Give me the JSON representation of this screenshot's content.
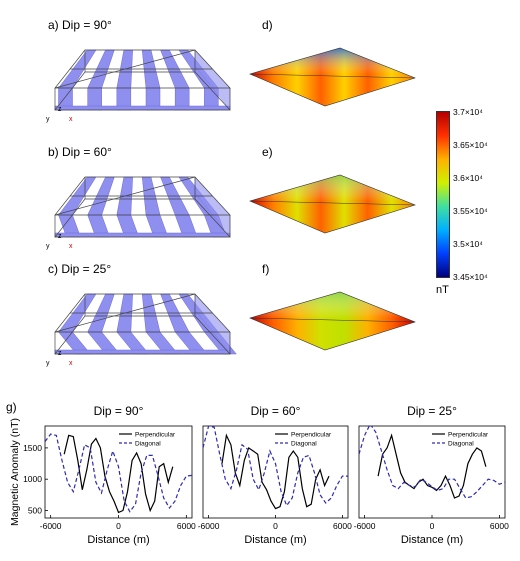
{
  "panels": {
    "a": {
      "label": "a) Dip = 90°"
    },
    "b": {
      "label": "b) Dip = 60°"
    },
    "c": {
      "label": "c) Dip = 25°"
    },
    "d": {
      "label": "d)"
    },
    "e": {
      "label": "e)"
    },
    "f": {
      "label": "f)"
    },
    "g": {
      "label": "g)"
    }
  },
  "axes_icon": {
    "y": "y",
    "z": "z",
    "x": "x"
  },
  "colorbar": {
    "ticks": [
      "3.7×10⁴",
      "3.65×10⁴",
      "3.6×10⁴",
      "3.55×10⁴",
      "3.5×10⁴",
      "3.45×10⁴"
    ],
    "unit": "nT",
    "colors": [
      "#b40000",
      "#ff3000",
      "#ffb000",
      "#d0f000",
      "#40e0a0",
      "#00b0ff",
      "#0040ff",
      "#000080"
    ]
  },
  "colors": {
    "block": "#8f8ff0",
    "block_edge": "#6a6ad8",
    "perpendicular": "#000000",
    "diagonal": "#2b2bb8"
  },
  "chart_data": [
    {
      "type": "line",
      "title": "Dip = 90°",
      "xlabel": "Distance (m)",
      "ylabel": "Magnetic Anomaly (nT)",
      "xlim": [
        -6500,
        6500
      ],
      "ylim": [
        380,
        1850
      ],
      "xticks": [
        "-6000",
        "0",
        "6000"
      ],
      "yticks": [
        "500",
        "1000",
        "1500"
      ],
      "legend": "top-right",
      "series": [
        {
          "name": "Perpendicular",
          "style": "solid",
          "x": [
            -4800,
            -4400,
            -4000,
            -3600,
            -3200,
            -2800,
            -2400,
            -2000,
            -1600,
            -1200,
            -800,
            -400,
            0,
            400,
            800,
            1200,
            1600,
            2000,
            2400,
            2800,
            3200,
            3600,
            4000,
            4400,
            4800
          ],
          "y": [
            1400,
            1700,
            1680,
            1300,
            830,
            1150,
            1560,
            1650,
            1500,
            1050,
            800,
            650,
            470,
            500,
            800,
            1300,
            1420,
            1250,
            760,
            500,
            650,
            1200,
            1250,
            950,
            1200
          ]
        },
        {
          "name": "Diagonal",
          "style": "dashed",
          "x": [
            -6500,
            -6000,
            -5500,
            -5000,
            -4500,
            -4000,
            -3500,
            -3000,
            -2500,
            -2000,
            -1500,
            -1000,
            -500,
            0,
            500,
            1000,
            1500,
            2000,
            2500,
            3000,
            3500,
            4000,
            4500,
            5000,
            5500,
            6000,
            6500
          ],
          "y": [
            1600,
            1720,
            1700,
            1300,
            950,
            800,
            1150,
            1550,
            1500,
            950,
            780,
            1150,
            1450,
            1200,
            650,
            480,
            600,
            1100,
            1380,
            1380,
            1050,
            700,
            540,
            650,
            900,
            1050,
            1060
          ]
        }
      ]
    },
    {
      "type": "line",
      "title": "Dip = 60°",
      "xlabel": "Distance (m)",
      "ylabel": "",
      "xlim": [
        -6500,
        6500
      ],
      "ylim": [
        380,
        1850
      ],
      "xticks": [
        "-6000",
        "0",
        "6000"
      ],
      "yticks": [],
      "legend": "top-right",
      "series": [
        {
          "name": "Perpendicular",
          "style": "solid",
          "x": [
            -4800,
            -4400,
            -4000,
            -3600,
            -3200,
            -2800,
            -2400,
            -2000,
            -1600,
            -1200,
            -800,
            -400,
            0,
            400,
            800,
            1200,
            1600,
            2000,
            2400,
            2800,
            3200,
            3600,
            4000,
            4400,
            4800
          ],
          "y": [
            1250,
            1700,
            1550,
            1100,
            900,
            1300,
            1500,
            1450,
            1400,
            950,
            830,
            650,
            530,
            560,
            800,
            1350,
            1450,
            1350,
            850,
            560,
            600,
            1000,
            1150,
            900,
            1050
          ]
        },
        {
          "name": "Diagonal",
          "style": "dashed",
          "x": [
            -6500,
            -6000,
            -5500,
            -5000,
            -4500,
            -4000,
            -3500,
            -3000,
            -2500,
            -2000,
            -1500,
            -1000,
            -500,
            0,
            500,
            1000,
            1500,
            2000,
            2500,
            3000,
            3500,
            4000,
            4500,
            5000,
            5500,
            6000,
            6500
          ],
          "y": [
            1500,
            1850,
            1830,
            1400,
            1000,
            850,
            1150,
            1550,
            1480,
            1000,
            830,
            1100,
            1450,
            1250,
            800,
            580,
            700,
            1100,
            1350,
            1380,
            1100,
            750,
            620,
            700,
            900,
            1050,
            1050
          ]
        }
      ]
    },
    {
      "type": "line",
      "title": "Dip = 25°",
      "xlabel": "Distance (m)",
      "ylabel": "",
      "xlim": [
        -6500,
        6500
      ],
      "ylim": [
        380,
        1850
      ],
      "xticks": [
        "-6000",
        "0",
        "6000"
      ],
      "yticks": [],
      "legend": "top-right",
      "series": [
        {
          "name": "Perpendicular",
          "style": "solid",
          "x": [
            -4800,
            -4400,
            -4000,
            -3600,
            -3200,
            -2800,
            -2400,
            -2000,
            -1600,
            -1200,
            -800,
            -400,
            0,
            400,
            800,
            1200,
            1600,
            2000,
            2400,
            2800,
            3200,
            3600,
            4000,
            4400,
            4800
          ],
          "y": [
            1050,
            1400,
            1500,
            1700,
            1400,
            1100,
            950,
            900,
            850,
            950,
            1000,
            900,
            870,
            820,
            900,
            1050,
            900,
            700,
            730,
            900,
            1250,
            1400,
            1500,
            1450,
            1200
          ]
        },
        {
          "name": "Diagonal",
          "style": "dashed",
          "x": [
            -6500,
            -6000,
            -5500,
            -5000,
            -4500,
            -4000,
            -3500,
            -3000,
            -2500,
            -2000,
            -1500,
            -1000,
            -500,
            0,
            500,
            1000,
            1500,
            2000,
            2500,
            3000,
            3500,
            4000,
            4500,
            5000,
            5500,
            6000,
            6500
          ],
          "y": [
            1400,
            1700,
            1880,
            1750,
            1450,
            1150,
            900,
            850,
            950,
            900,
            880,
            1000,
            950,
            880,
            820,
            850,
            1000,
            1000,
            850,
            700,
            720,
            800,
            900,
            1000,
            980,
            920,
            950
          ]
        }
      ]
    }
  ]
}
